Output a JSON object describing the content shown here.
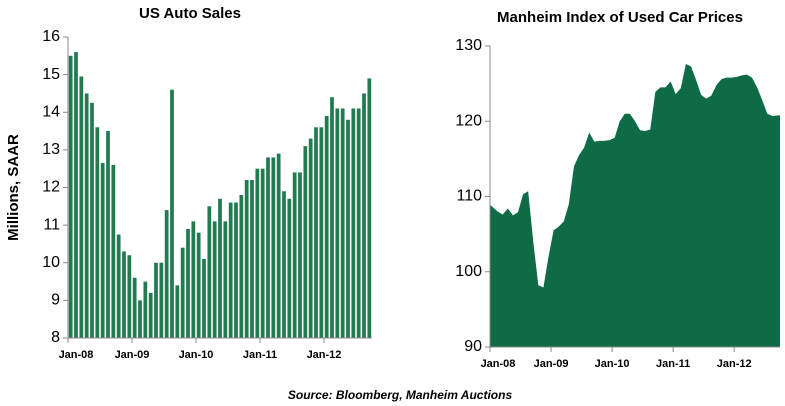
{
  "chart_data": [
    {
      "type": "bar",
      "title": "US Auto Sales",
      "y_label": "Millions, SAAR",
      "color": "#217a50",
      "categories": [
        "Jan-08",
        null,
        null,
        null,
        null,
        null,
        null,
        null,
        null,
        null,
        null,
        null,
        "Jan-09",
        null,
        null,
        null,
        null,
        null,
        null,
        null,
        null,
        null,
        null,
        null,
        "Jan-10",
        null,
        null,
        null,
        null,
        null,
        null,
        null,
        null,
        null,
        null,
        null,
        "Jan-11",
        null,
        null,
        null,
        null,
        null,
        null,
        null,
        null,
        null,
        null,
        null,
        "Jan-12",
        null,
        null,
        null,
        null,
        null,
        null,
        null,
        null
      ],
      "values": [
        15.5,
        15.6,
        14.95,
        14.5,
        14.25,
        13.6,
        12.65,
        13.5,
        12.6,
        10.75,
        10.3,
        10.2,
        9.6,
        9.0,
        9.5,
        9.2,
        10.0,
        10.0,
        11.4,
        14.6,
        9.4,
        10.4,
        10.9,
        11.1,
        10.8,
        10.1,
        11.5,
        11.1,
        11.7,
        11.1,
        11.6,
        11.6,
        11.8,
        12.2,
        12.2,
        12.5,
        12.5,
        12.8,
        12.8,
        12.9,
        11.9,
        11.7,
        12.4,
        12.4,
        13.1,
        13.3,
        13.6,
        13.6,
        13.9,
        14.4,
        14.1,
        14.1,
        13.8,
        14.1,
        14.1,
        14.5,
        14.9
      ],
      "ylim": [
        8,
        16
      ],
      "yticks": [
        8,
        9,
        10,
        11,
        12,
        13,
        14,
        15,
        16
      ],
      "grid": false
    },
    {
      "type": "area",
      "title": "Manheim Index of Used Car Prices",
      "color": "#0e6b45",
      "categories": [
        "Jan-08",
        null,
        null,
        null,
        null,
        null,
        null,
        null,
        null,
        null,
        null,
        null,
        "Jan-09",
        null,
        null,
        null,
        null,
        null,
        null,
        null,
        null,
        null,
        null,
        null,
        "Jan-10",
        null,
        null,
        null,
        null,
        null,
        null,
        null,
        null,
        null,
        null,
        null,
        "Jan-11",
        null,
        null,
        null,
        null,
        null,
        null,
        null,
        null,
        null,
        null,
        null,
        "Jan-12",
        null,
        null,
        null,
        null,
        null,
        null,
        null,
        null
      ],
      "values": [
        108.9,
        108.0,
        107.6,
        108.4,
        107.5,
        107.9,
        110.3,
        110.7,
        104,
        98.2,
        97.9,
        102,
        105.5,
        106,
        106.7,
        109,
        114,
        115.5,
        116.5,
        118.5,
        117.3,
        117.4,
        117.4,
        117.5,
        117.8,
        120,
        121,
        121,
        120,
        118.8,
        118.7,
        118.9,
        123.9,
        124.5,
        124.5,
        125.3,
        123.6,
        124.4,
        127.6,
        127.3,
        125.5,
        123.5,
        123,
        123.4,
        124.8,
        125.6,
        125.8,
        125.8,
        125.9,
        126.1,
        126.2,
        125.8,
        124.5,
        122.8,
        121,
        120.7,
        120.8
      ],
      "ylim": [
        90,
        130
      ],
      "yticks": [
        90,
        100,
        110,
        120,
        130
      ],
      "grid": false
    }
  ],
  "source": "Source: Bloomberg, Manheim Auctions"
}
